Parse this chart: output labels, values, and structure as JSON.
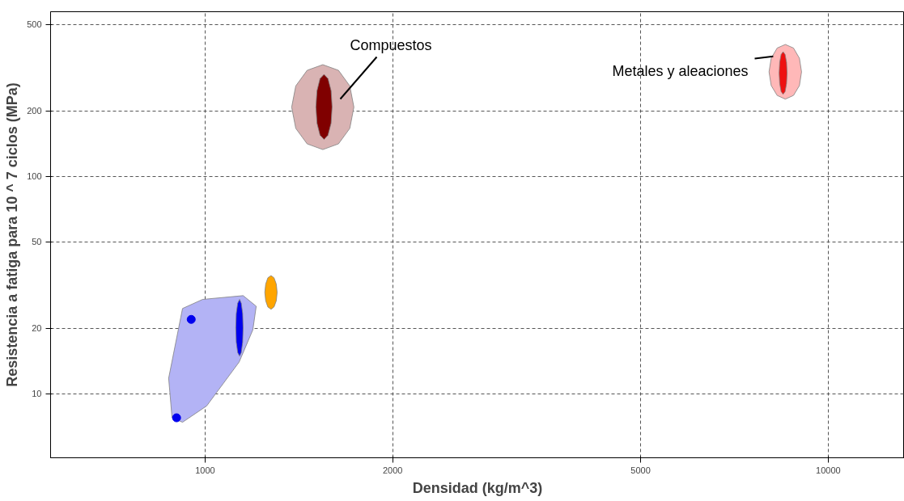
{
  "chart_data": {
    "type": "area",
    "xlabel": "Densidad (kg/m^3)",
    "ylabel": "Resistencia a fatiga para 10 ^ 7 ciclos (MPa)",
    "log": "xy",
    "xlim": [
      565,
      13250
    ],
    "ylim": [
      5.08,
      573
    ],
    "xticks": [
      1000,
      2000,
      5000,
      10000
    ],
    "yticks": [
      10,
      20,
      50,
      100,
      200,
      500
    ],
    "grid": true,
    "series": [
      {
        "color": "#b3b3f5",
        "x": [
          885,
          874,
          920,
          991,
          1151,
          1208,
          1193,
          1134,
          1006,
          920
        ],
        "values": [
          7.76,
          11.8,
          24.7,
          27.2,
          28.3,
          25.3,
          19.7,
          14.0,
          8.8,
          7.4
        ]
      },
      {
        "color": "#d9b3b3",
        "x": [
          1733,
          1707,
          1637,
          1545,
          1458,
          1398,
          1377,
          1398,
          1458,
          1545,
          1637,
          1707
        ],
        "values": [
          208.5,
          261,
          308,
          327,
          308,
          261,
          208.5,
          166.5,
          141.3,
          133,
          141.3,
          166.5
        ]
      },
      {
        "color": "#ffb8b8",
        "x": [
          9060,
          8990,
          8795,
          8533,
          8280,
          8100,
          8035,
          8100,
          8280,
          8533,
          8795,
          8990
        ],
        "values": [
          303,
          350,
          390,
          405,
          390,
          350,
          303,
          262,
          236,
          227,
          236,
          262
        ]
      },
      {
        "color": "#800000",
        "x": [
          1599,
          1593,
          1575,
          1552,
          1529,
          1512,
          1506,
          1512,
          1529,
          1552,
          1575,
          1593
        ],
        "values": [
          209,
          248,
          282,
          295,
          282,
          248,
          209,
          176,
          155,
          148,
          155,
          176
        ]
      },
      {
        "color": "#ee1111",
        "x": [
          8590,
          8573,
          8527,
          8464,
          8401,
          8357,
          8340,
          8357,
          8401,
          8464,
          8527,
          8573
        ],
        "values": [
          299,
          335,
          364,
          375,
          364,
          335,
          299,
          268,
          246,
          239,
          246,
          268
        ]
      },
      {
        "color": "#ffa500",
        "x": [
          1305,
          1301,
          1290,
          1276,
          1261,
          1251,
          1247,
          1251,
          1261,
          1276,
          1290,
          1301
        ],
        "values": [
          29.3,
          32.0,
          34.2,
          35,
          34.2,
          32.0,
          29.3,
          26.8,
          25.1,
          24.5,
          25.1,
          26.8
        ]
      },
      {
        "color": "#0000ee",
        "x": [
          1151,
          1149,
          1143,
          1136,
          1128,
          1122,
          1120,
          1122,
          1128,
          1136,
          1143,
          1149
        ],
        "values": [
          20.1,
          23.4,
          26.1,
          27.2,
          26.1,
          23.4,
          20.1,
          17.3,
          15.5,
          14.9,
          15.5,
          17.3
        ]
      },
      {
        "type": "scatter",
        "color": "#0000ee",
        "marker": "circle",
        "x": [
          950,
          900
        ],
        "values": [
          22,
          7.76
        ]
      }
    ],
    "annotations": [
      "Compuestos",
      {
        "text": "Metales y aleaciones",
        "x": 8160,
        "y": 357
      }
    ]
  }
}
